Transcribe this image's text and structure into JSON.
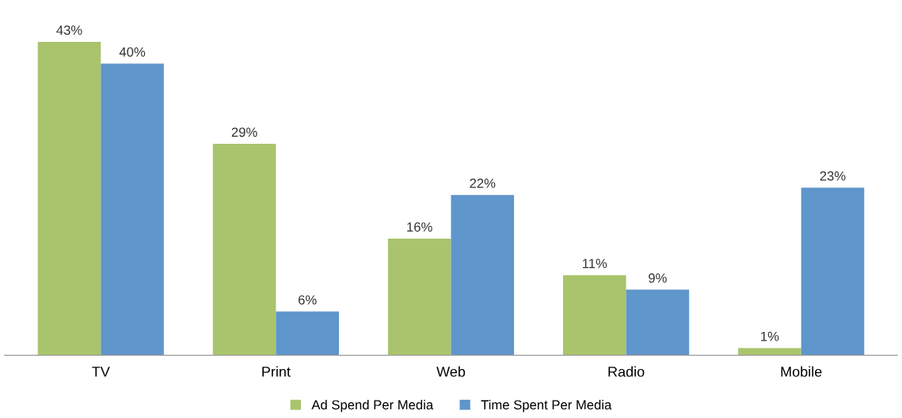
{
  "chart_data": {
    "type": "bar",
    "categories": [
      "TV",
      "Print",
      "Web",
      "Radio",
      "Mobile"
    ],
    "series": [
      {
        "name": "Ad Spend Per Media",
        "color": "#a9c46c",
        "values": [
          43,
          29,
          16,
          11,
          1
        ],
        "value_labels": [
          "43%",
          "29%",
          "16%",
          "11%",
          "1%"
        ]
      },
      {
        "name": "Time Spent Per Media",
        "color": "#5f96cb",
        "values": [
          40,
          6,
          22,
          9,
          23
        ],
        "value_labels": [
          "40%",
          "6%",
          "22%",
          "9%",
          "23%"
        ]
      }
    ],
    "legend": "bottom",
    "grid": false,
    "tick_labels": "x"
  }
}
